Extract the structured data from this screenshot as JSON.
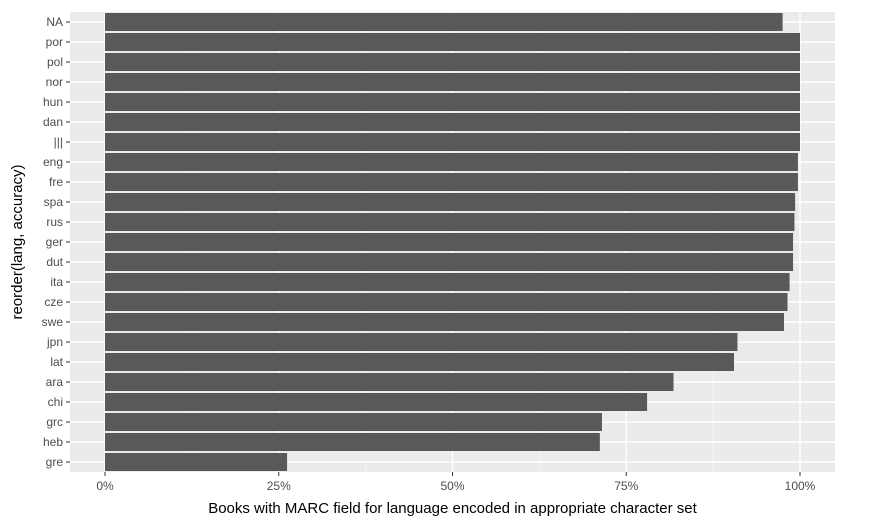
{
  "chart_data": {
    "type": "bar",
    "orientation": "horizontal",
    "xlabel": "Books with MARC field for language encoded in appropriate character set",
    "ylabel": "reorder(lang, accuracy)",
    "xlim": [
      0,
      1.05
    ],
    "x_ticks": [
      {
        "value": 0,
        "label": "0%"
      },
      {
        "value": 0.25,
        "label": "25%"
      },
      {
        "value": 0.5,
        "label": "50%"
      },
      {
        "value": 0.75,
        "label": "75%"
      },
      {
        "value": 1.0,
        "label": "100%"
      }
    ],
    "categories": [
      "NA",
      "por",
      "pol",
      "nor",
      "hun",
      "dan",
      "|||",
      "eng",
      "fre",
      "spa",
      "rus",
      "ger",
      "dut",
      "ita",
      "cze",
      "swe",
      "jpn",
      "lat",
      "ara",
      "chi",
      "grc",
      "heb",
      "gre"
    ],
    "values": [
      0.975,
      1.0,
      1.0,
      1.0,
      1.0,
      1.0,
      1.0,
      0.997,
      0.997,
      0.993,
      0.992,
      0.99,
      0.99,
      0.985,
      0.982,
      0.977,
      0.91,
      0.905,
      0.818,
      0.78,
      0.715,
      0.712,
      0.262
    ],
    "grid": true,
    "legend": "none"
  },
  "colors": {
    "bar": "#595959",
    "panel": "#ebebeb",
    "grid_major": "#ffffff",
    "grid_minor": "#f5f5f5",
    "tick": "#333333"
  }
}
